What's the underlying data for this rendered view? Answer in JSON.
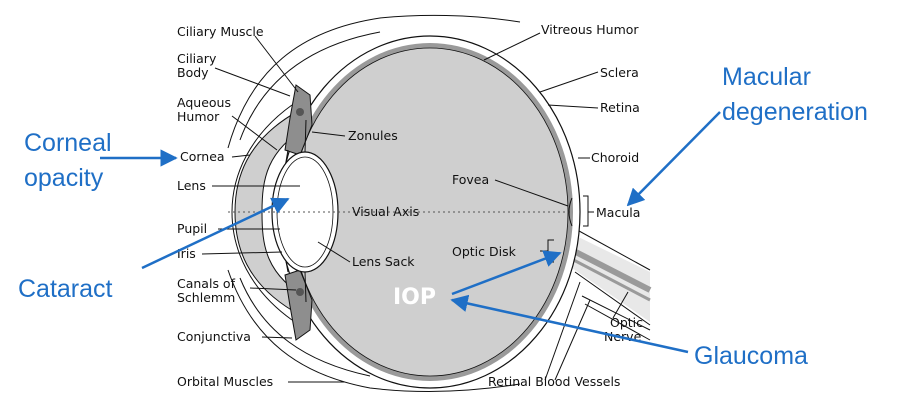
{
  "colors": {
    "accent_blue": "#1F6FC6",
    "eye_fill": "#CFCFCF",
    "eye_shadow": "#9A9A9A",
    "outline": "#111111",
    "iop_text": "#FFFFFF"
  },
  "diagram": {
    "anatomy_labels": {
      "ciliary_muscle": "Ciliary Muscle",
      "ciliary_body_line1": "Ciliary",
      "ciliary_body_line2": "Body",
      "aqueous_humor_line1": "Aqueous",
      "aqueous_humor_line2": "Humor",
      "cornea": "Cornea",
      "lens": "Lens",
      "pupil": "Pupil",
      "iris": "Iris",
      "canals_line1": "Canals of",
      "canals_line2": "Schlemm",
      "conjunctiva": "Conjunctiva",
      "orbital_muscles": "Orbital Muscles",
      "zonules": "Zonules",
      "visual_axis": "Visual Axis",
      "lens_sack": "Lens Sack",
      "fovea": "Fovea",
      "optic_disk": "Optic Disk",
      "vitreous_humor": "Vitreous Humor",
      "sclera": "Sclera",
      "retina": "Retina",
      "choroid": "Choroid",
      "macula": "Macula",
      "optic_nerve_line1": "Optic",
      "optic_nerve_line2": "Nerve",
      "retinal_blood_vessels": "Retinal Blood Vessels",
      "iop": "IOP"
    },
    "conditions": {
      "corneal_opacity_line1": "Corneal",
      "corneal_opacity_line2": "opacity",
      "cataract": "Cataract",
      "glaucoma": "Glaucoma",
      "macular_line1": "Macular",
      "macular_line2": "degeneration"
    }
  }
}
